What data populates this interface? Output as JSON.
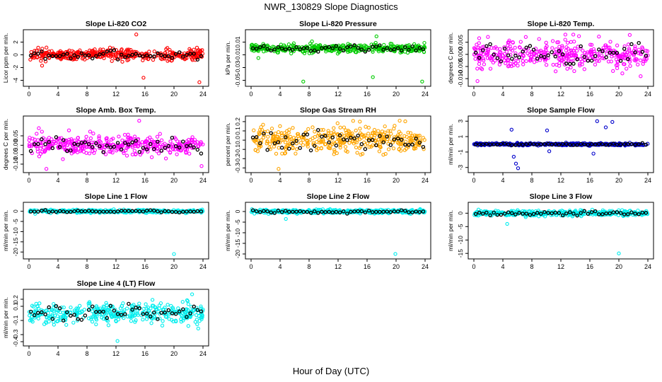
{
  "figure": {
    "title": "NWR_130829  Slope Diagnostics",
    "xlabel": "Hour of Day (UTC)"
  },
  "chart_data": [
    {
      "type": "scatter",
      "title": "Slope Li-820 CO2",
      "ylabel": "Licor ppm per min.",
      "color": "#ff0000",
      "xlim": [
        0,
        24
      ],
      "ylim": [
        -4.5,
        3.5
      ],
      "xticks": [
        0,
        4,
        8,
        12,
        16,
        20,
        24
      ],
      "yticks": [
        -4,
        -2,
        0,
        2
      ],
      "ytick_labels": [
        "-4",
        "-2",
        "0",
        "2"
      ],
      "noise": 0.7,
      "outliers": [
        [
          14.8,
          3.2
        ],
        [
          15.8,
          -3.6
        ],
        [
          23.5,
          -4.3
        ],
        [
          1.8,
          -1.7
        ]
      ]
    },
    {
      "type": "scatter",
      "title": "Slope Li-820 Pressure",
      "ylabel": "kPa per min.",
      "color": "#00cc00",
      "xlim": [
        0,
        24
      ],
      "ylim": [
        -0.055,
        0.025
      ],
      "xticks": [
        0,
        4,
        8,
        12,
        16,
        20,
        24
      ],
      "yticks": [
        -0.05,
        -0.03,
        -0.01,
        0.01
      ],
      "ytick_labels": [
        "-0.05",
        "-0.03",
        "-0.01",
        "0.01"
      ],
      "noise": 0.005,
      "outliers": [
        [
          7.2,
          -0.052
        ],
        [
          16.8,
          -0.045
        ],
        [
          17.3,
          0.019
        ],
        [
          23.6,
          -0.052
        ],
        [
          1.0,
          -0.015
        ]
      ]
    },
    {
      "type": "scatter",
      "title": "Slope Li-820 Temp.",
      "ylabel": "degrees C per min.",
      "color": "#ff00ff",
      "xlim": [
        0,
        24
      ],
      "ylim": [
        -0.012,
        0.009
      ],
      "xticks": [
        0,
        4,
        8,
        12,
        16,
        20,
        24
      ],
      "yticks": [
        -0.01,
        -0.005,
        0,
        0.005
      ],
      "ytick_labels": [
        "-0.010",
        "-0.005",
        "0.000",
        "0.005"
      ],
      "noise": 0.0045,
      "outliers": [
        [
          0.5,
          -0.011
        ],
        [
          21.5,
          0.008
        ],
        [
          14.5,
          0.0075
        ],
        [
          23.0,
          -0.009
        ]
      ]
    },
    {
      "type": "scatter",
      "title": "Slope Amb. Box Temp.",
      "ylabel": "degrees C per min.",
      "color": "#ff00ff",
      "xlim": [
        0,
        24
      ],
      "ylim": [
        -0.13,
        0.14
      ],
      "xticks": [
        0,
        4,
        8,
        12,
        16,
        20,
        24
      ],
      "yticks": [
        -0.1,
        -0.05,
        0,
        0.05
      ],
      "ytick_labels": [
        "-0.10",
        "-0.05",
        "0.00",
        "0.05"
      ],
      "noise": 0.045,
      "outliers": [
        [
          2.4,
          -0.125
        ],
        [
          15.2,
          0.13
        ],
        [
          23.8,
          -0.11
        ]
      ]
    },
    {
      "type": "scatter",
      "title": "Slope Gas Stream RH",
      "ylabel": "percent per min.",
      "color": "#ffa500",
      "xlim": [
        0,
        24
      ],
      "ylim": [
        -0.32,
        0.23
      ],
      "xticks": [
        0,
        4,
        8,
        12,
        16,
        20,
        24
      ],
      "yticks": [
        -0.3,
        -0.2,
        -0.1,
        0,
        0.1,
        0.2
      ],
      "ytick_labels": [
        "-0.3",
        "-0.2",
        "-0.1",
        "0.0",
        "0.1",
        "0.2"
      ],
      "noise": 0.11,
      "outliers": [
        [
          3.8,
          -0.31
        ],
        [
          15.0,
          0.2
        ],
        [
          20.5,
          0.21
        ]
      ]
    },
    {
      "type": "scatter",
      "title": "Slope Sample Flow",
      "ylabel": "ml/min per min.",
      "color": "#0000cc",
      "xlim": [
        0,
        24
      ],
      "ylim": [
        -3.3,
        3.3
      ],
      "xticks": [
        0,
        4,
        8,
        12,
        16,
        20,
        24
      ],
      "yticks": [
        -3,
        -1,
        1,
        3
      ],
      "ytick_labels": [
        "-3",
        "-1",
        "1",
        "3"
      ],
      "noise": 0.12,
      "outliers": [
        [
          5.2,
          1.9
        ],
        [
          5.5,
          -1.6
        ],
        [
          5.8,
          -2.5
        ],
        [
          6.1,
          -3.1
        ],
        [
          10.1,
          1.8
        ],
        [
          10.4,
          -0.9
        ],
        [
          17.0,
          3.0
        ],
        [
          18.2,
          2.2
        ],
        [
          19.1,
          2.9
        ],
        [
          16.5,
          -1.2
        ]
      ]
    },
    {
      "type": "scatter",
      "title": "Slope Line 1 Flow",
      "ylabel": "ml/min per min.",
      "color": "#00eeee",
      "xlim": [
        0,
        24
      ],
      "ylim": [
        -22,
        3
      ],
      "xticks": [
        0,
        4,
        8,
        12,
        16,
        20,
        24
      ],
      "yticks": [
        -20,
        -15,
        -10,
        -5,
        0
      ],
      "ytick_labels": [
        "-20",
        "-15",
        "-10",
        "-5",
        "0"
      ],
      "noise": 0.6,
      "outliers": [
        [
          20,
          -21
        ]
      ]
    },
    {
      "type": "scatter",
      "title": "Slope Line 2 Flow",
      "ylabel": "ml/min per min.",
      "color": "#00eeee",
      "xlim": [
        0,
        24
      ],
      "ylim": [
        -21,
        3
      ],
      "xticks": [
        0,
        4,
        8,
        12,
        16,
        20,
        24
      ],
      "yticks": [
        -20,
        -15,
        -10,
        -5,
        0
      ],
      "ytick_labels": [
        "-20",
        "-15",
        "-10",
        "-5",
        "0"
      ],
      "noise": 0.7,
      "outliers": [
        [
          19.9,
          -20
        ],
        [
          4.8,
          -3.5
        ]
      ]
    },
    {
      "type": "scatter",
      "title": "Slope Line 3 Flow",
      "ylabel": "ml/min per min.",
      "color": "#00eeee",
      "xlim": [
        0,
        24
      ],
      "ylim": [
        -16,
        3
      ],
      "xticks": [
        0,
        4,
        8,
        12,
        16,
        20,
        24
      ],
      "yticks": [
        -15,
        -10,
        -5,
        0
      ],
      "ytick_labels": [
        "-15",
        "-10",
        "-5",
        "0"
      ],
      "noise": 0.8,
      "outliers": [
        [
          20,
          -15
        ],
        [
          4.6,
          -4
        ]
      ]
    },
    {
      "type": "scatter",
      "title": "Slope Line 4 (LT) Flow",
      "ylabel": "ml/min per min.",
      "color": "#00eeee",
      "xlim": [
        0,
        24
      ],
      "ylim": [
        -0.42,
        0.3
      ],
      "xticks": [
        0,
        4,
        8,
        12,
        16,
        20,
        24
      ],
      "yticks": [
        -0.4,
        -0.3,
        -0.1,
        0.1,
        0.2
      ],
      "ytick_labels": [
        "-0.4",
        "-0.3",
        "-0.1",
        "0.1",
        "0.2"
      ],
      "noise": 0.12,
      "outliers": [
        [
          12.2,
          -0.39
        ],
        [
          22.5,
          0.27
        ]
      ]
    }
  ]
}
